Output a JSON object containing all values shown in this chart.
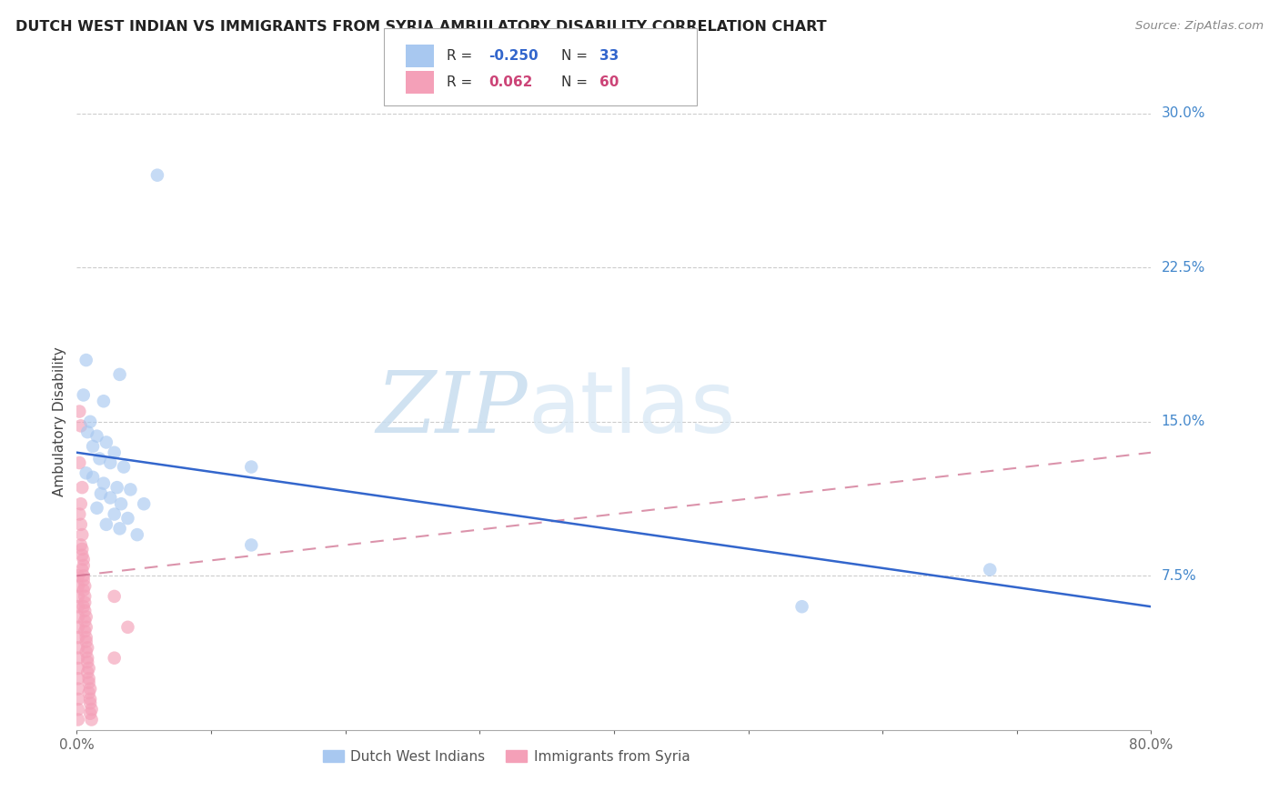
{
  "title": "DUTCH WEST INDIAN VS IMMIGRANTS FROM SYRIA AMBULATORY DISABILITY CORRELATION CHART",
  "source": "Source: ZipAtlas.com",
  "ylabel": "Ambulatory Disability",
  "blue_color": "#A8C8F0",
  "pink_color": "#F4A0B8",
  "blue_line_color": "#3366CC",
  "pink_line_color": "#CC6688",
  "watermark_zip": "ZIP",
  "watermark_atlas": "atlas",
  "xlim": [
    0.0,
    0.8
  ],
  "ylim": [
    0.0,
    0.3
  ],
  "blue_dots": [
    [
      0.06,
      0.27
    ],
    [
      0.007,
      0.18
    ],
    [
      0.032,
      0.173
    ],
    [
      0.005,
      0.163
    ],
    [
      0.02,
      0.16
    ],
    [
      0.01,
      0.15
    ],
    [
      0.008,
      0.145
    ],
    [
      0.015,
      0.143
    ],
    [
      0.022,
      0.14
    ],
    [
      0.012,
      0.138
    ],
    [
      0.028,
      0.135
    ],
    [
      0.017,
      0.132
    ],
    [
      0.025,
      0.13
    ],
    [
      0.035,
      0.128
    ],
    [
      0.007,
      0.125
    ],
    [
      0.012,
      0.123
    ],
    [
      0.02,
      0.12
    ],
    [
      0.03,
      0.118
    ],
    [
      0.04,
      0.117
    ],
    [
      0.018,
      0.115
    ],
    [
      0.025,
      0.113
    ],
    [
      0.033,
      0.11
    ],
    [
      0.05,
      0.11
    ],
    [
      0.015,
      0.108
    ],
    [
      0.028,
      0.105
    ],
    [
      0.038,
      0.103
    ],
    [
      0.022,
      0.1
    ],
    [
      0.032,
      0.098
    ],
    [
      0.045,
      0.095
    ],
    [
      0.13,
      0.128
    ],
    [
      0.13,
      0.09
    ],
    [
      0.54,
      0.06
    ],
    [
      0.68,
      0.078
    ]
  ],
  "pink_dots": [
    [
      0.002,
      0.155
    ],
    [
      0.003,
      0.148
    ],
    [
      0.002,
      0.13
    ],
    [
      0.004,
      0.118
    ],
    [
      0.003,
      0.11
    ],
    [
      0.002,
      0.105
    ],
    [
      0.003,
      0.1
    ],
    [
      0.004,
      0.095
    ],
    [
      0.003,
      0.09
    ],
    [
      0.004,
      0.088
    ],
    [
      0.004,
      0.085
    ],
    [
      0.005,
      0.083
    ],
    [
      0.005,
      0.08
    ],
    [
      0.004,
      0.078
    ],
    [
      0.005,
      0.075
    ],
    [
      0.005,
      0.073
    ],
    [
      0.006,
      0.07
    ],
    [
      0.005,
      0.068
    ],
    [
      0.006,
      0.065
    ],
    [
      0.006,
      0.062
    ],
    [
      0.005,
      0.06
    ],
    [
      0.006,
      0.058
    ],
    [
      0.007,
      0.055
    ],
    [
      0.006,
      0.053
    ],
    [
      0.007,
      0.05
    ],
    [
      0.006,
      0.048
    ],
    [
      0.007,
      0.045
    ],
    [
      0.007,
      0.043
    ],
    [
      0.008,
      0.04
    ],
    [
      0.007,
      0.038
    ],
    [
      0.008,
      0.035
    ],
    [
      0.008,
      0.033
    ],
    [
      0.009,
      0.03
    ],
    [
      0.008,
      0.028
    ],
    [
      0.009,
      0.025
    ],
    [
      0.009,
      0.023
    ],
    [
      0.01,
      0.02
    ],
    [
      0.009,
      0.018
    ],
    [
      0.01,
      0.015
    ],
    [
      0.01,
      0.013
    ],
    [
      0.011,
      0.01
    ],
    [
      0.01,
      0.008
    ],
    [
      0.011,
      0.005
    ],
    [
      0.001,
      0.075
    ],
    [
      0.001,
      0.07
    ],
    [
      0.001,
      0.065
    ],
    [
      0.001,
      0.06
    ],
    [
      0.001,
      0.055
    ],
    [
      0.001,
      0.05
    ],
    [
      0.001,
      0.045
    ],
    [
      0.001,
      0.04
    ],
    [
      0.001,
      0.035
    ],
    [
      0.001,
      0.03
    ],
    [
      0.001,
      0.025
    ],
    [
      0.001,
      0.02
    ],
    [
      0.001,
      0.015
    ],
    [
      0.001,
      0.01
    ],
    [
      0.001,
      0.005
    ],
    [
      0.028,
      0.065
    ],
    [
      0.038,
      0.05
    ],
    [
      0.028,
      0.035
    ]
  ],
  "blue_line": [
    0.0,
    0.8,
    0.135,
    0.06
  ],
  "pink_line": [
    0.0,
    0.8,
    0.075,
    0.135
  ]
}
